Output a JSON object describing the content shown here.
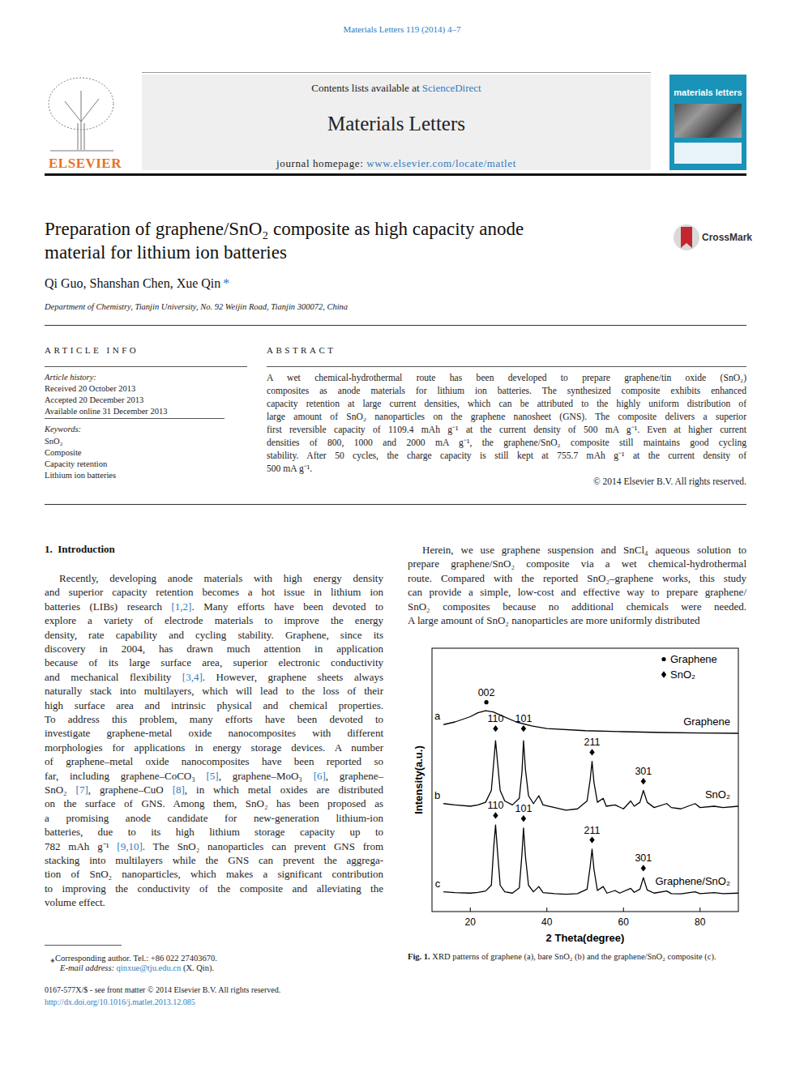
{
  "header": {
    "journal_ref": "Materials Letters 119 (2014) 4–7",
    "contents": "Contents lists available at ",
    "sciencedirect": "ScienceDirect",
    "journal": "Materials Letters",
    "homepage_label": "journal homepage: ",
    "homepage_url": "www.elsevier.com/locate/matlet",
    "publisher": "ELSEVIER",
    "cover_title": "materials letters",
    "crossmark": "CrossMark"
  },
  "title_lines": [
    "Preparation of graphene/SnO₂ composite as high capacity anode",
    "material for lithium ion batteries"
  ],
  "authors": "Qi Guo, Shanshan Chen, Xue Qin",
  "corresponding_mark": "*",
  "affiliation": "Department of Chemistry, Tianjin University, No. 92 Weijin Road, Tianjin 300072, China",
  "article_info": {
    "heading": "ARTICLE INFO",
    "history_label": "Article history:",
    "history": [
      "Received 20 October 2013",
      "Accepted 20 December 2013",
      "Available online 31 December 2013"
    ],
    "keywords_label": "Keywords:",
    "keywords": [
      "SnO₂",
      "Composite",
      "Capacity retention",
      "Lithium ion batteries"
    ]
  },
  "abstract": {
    "heading": "ABSTRACT",
    "lines": [
      "A wet chemical-hydrothermal route has been developed to prepare graphene/tin oxide (SnO₂)",
      "composites as anode materials for lithium ion batteries. The synthesized composite exhibits enhanced",
      "capacity retention at large current densities, which can be attributed to the highly uniform distribution of",
      "large amount of SnO₂ nanoparticles on the graphene nanosheet (GNS). The composite delivers a superior",
      "first reversible capacity of 1109.4 mAh g⁻¹ at the current density of 500 mA g⁻¹. Even at higher current",
      "densities of 800, 1000 and 2000 mA g⁻¹, the graphene/SnO₂ composite still maintains good cycling",
      "stability. After 50 cycles, the charge capacity is still kept at 755.7 mAh g⁻¹ at the current density of",
      "500 mA g⁻¹."
    ],
    "copyright": "© 2014 Elsevier B.V. All rights reserved."
  },
  "introduction": {
    "heading": "1.  Introduction",
    "left_lines": [
      "Recently, developing anode materials with high energy density",
      "and superior capacity retention becomes a hot issue in lithium ion",
      "batteries (LIBs) research [1,2]. Many efforts have been devoted to",
      "explore a variety of electrode materials to improve the energy",
      "density, rate capability and cycling stability. Graphene, since its",
      "discovery in 2004, has drawn much attention in application",
      "because of its large surface area, superior electronic conductivity",
      "and mechanical flexibility [3,4]. However, graphene sheets always",
      "naturally stack into multilayers, which will lead to the loss of their",
      "high surface area and intrinsic physical and chemical properties.",
      "To address this problem, many efforts have been devoted to",
      "investigate graphene-metal oxide nanocomposites with different",
      "morphologies for applications in energy storage devices. A number",
      "of graphene–metal oxide nanocomposites have been reported so",
      "far, including graphene–CoCO₃ [5], graphene–MoO₃ [6], graphene–",
      "SnO₂ [7], graphene–CuO [8], in which metal oxides are distributed",
      "on the surface of GNS. Among them, SnO₂ has been proposed as",
      "a promising anode candidate for new-generation lithium-ion",
      "batteries, due to its high lithium storage capacity up to",
      "782 mAh g⁻¹ [9,10]. The SnO₂ nanoparticles can prevent GNS from",
      "stacking into multilayers while the GNS can prevent the aggrega-",
      "tion of SnO₂ nanoparticles, which makes a significant contribution",
      "to improving the conductivity of the composite and alleviating the",
      "volume effect."
    ],
    "right_lines": [
      "Herein, we use graphene suspension and SnCl₄ aqueous solution to",
      "prepare graphene/SnO₂ composite via a wet chemical-hydrothermal",
      "route. Compared with the reported SnO₂–graphene works, this study",
      "can provide a simple, low-cost and effective way to prepare graphene/",
      "SnO₂ composites because no additional chemicals were needed.",
      "A large amount of SnO₂ nanoparticles are more uniformly distributed"
    ]
  },
  "figure": {
    "caption_label": "Fig. 1.",
    "caption": " XRD patterns of graphene (a), bare SnO₂ (b) and the graphene/SnO₂ composite (c)."
  },
  "chart_data": {
    "type": "line",
    "x_label": "2 Theta(degree)",
    "y_label": "Intensity(a.u.)",
    "xlim": [
      10,
      90
    ],
    "xticks": [
      20,
      40,
      60,
      80
    ],
    "ylim": [
      0,
      100
    ],
    "tick_labels": "x",
    "legend": "upper right",
    "legend_entries": [
      {
        "text": "Graphene",
        "marker": "dot"
      },
      {
        "text": "SnO₂",
        "marker": "diamond"
      }
    ],
    "series": [
      {
        "name": "Graphene",
        "label": "a",
        "color": "#000000",
        "x": [
          13,
          16,
          20,
          22,
          24,
          26,
          28,
          32,
          36,
          40,
          50,
          60,
          70,
          80,
          90
        ],
        "values": [
          71,
          72,
          74,
          75.5,
          76.3,
          75.8,
          74.5,
          72,
          70.5,
          69.5,
          68.7,
          68.3,
          68,
          67.8,
          67.7
        ]
      },
      {
        "name": "SnO₂",
        "label": "b",
        "color": "#000000",
        "x": [
          13,
          16,
          20,
          22,
          24,
          25.5,
          26.2,
          26.6,
          27.1,
          27.8,
          29,
          31,
          32.8,
          33.5,
          33.9,
          34.4,
          35.2,
          36.5,
          37.9,
          39,
          42,
          45,
          48,
          50.5,
          51.3,
          51.8,
          52.3,
          53.2,
          54.7,
          55.5,
          57.8,
          60,
          61.9,
          62.8,
          64.3,
          65.2,
          66.2,
          68,
          71.3,
          72.5,
          75,
          78.7,
          80,
          83.7,
          86,
          90
        ],
        "values": [
          41,
          40.5,
          40,
          40.5,
          41.5,
          46,
          58,
          64.9,
          57,
          46,
          42,
          40.5,
          43,
          53,
          64.9,
          54,
          44,
          41,
          44,
          40.5,
          39.5,
          38.5,
          39,
          42,
          50,
          57,
          49,
          41.5,
          43,
          40,
          40.5,
          39,
          42,
          40,
          41.5,
          46,
          41.5,
          39.5,
          41,
          39.5,
          39,
          41,
          39.5,
          40,
          39.5,
          40
        ]
      },
      {
        "name": "Graphene/SnO₂",
        "label": "c",
        "color": "#000000",
        "x": [
          13,
          16,
          20,
          22,
          24,
          25.5,
          26.1,
          26.6,
          27.1,
          27.8,
          29,
          31,
          32.8,
          33.5,
          33.9,
          34.4,
          35.2,
          36.5,
          37.9,
          39,
          42,
          45,
          48,
          50.5,
          51.3,
          51.8,
          52.3,
          53.2,
          54.7,
          55.7,
          57.8,
          59,
          61.9,
          62.8,
          64.3,
          65.2,
          66.2,
          68,
          71.3,
          72.5,
          75,
          78.7,
          80,
          83.7,
          86,
          90
        ],
        "values": [
          7.5,
          7.2,
          7,
          7.3,
          7.8,
          10,
          24,
          32.9,
          23,
          10,
          7.5,
          7,
          9,
          22,
          31.7,
          21,
          10,
          7.5,
          9.5,
          7.2,
          6.8,
          6.6,
          6.8,
          8.5,
          17,
          23.7,
          16,
          8,
          9.5,
          7,
          8,
          7,
          8.8,
          7.3,
          8.5,
          12.9,
          8.2,
          7,
          7.8,
          6.8,
          6.7,
          7.5,
          6.8,
          7.2,
          6.8,
          7
        ]
      }
    ],
    "annotations": [
      {
        "text": "002",
        "x": 24.2,
        "y": 79.5,
        "marker": "dot"
      },
      {
        "text": "110",
        "x": 26.6,
        "y": 69.5,
        "marker": "diamond"
      },
      {
        "text": "101",
        "x": 33.9,
        "y": 69.5,
        "marker": "diamond"
      },
      {
        "text": "211",
        "x": 51.8,
        "y": 60.5,
        "marker": "diamond"
      },
      {
        "text": "301",
        "x": 65.2,
        "y": 49.5,
        "marker": "diamond"
      },
      {
        "text": "110",
        "x": 26.6,
        "y": 36.5,
        "marker": "diamond"
      },
      {
        "text": "101",
        "x": 33.9,
        "y": 35.3,
        "marker": "diamond"
      },
      {
        "text": "211",
        "x": 51.8,
        "y": 27.2,
        "marker": "diamond"
      },
      {
        "text": "301",
        "x": 65.2,
        "y": 16.5,
        "marker": "diamond"
      }
    ]
  },
  "footnotes": {
    "corresponding": "⁎Corresponding author. Tel.: +86 022 27403670.",
    "email_label": "E-mail address: ",
    "email": "qinxue@tju.edu.cn",
    "email_suffix": " (X. Qin).",
    "front_matter": "0167-577X/$ - see front matter © 2014 Elsevier B.V. All rights reserved.",
    "doi": "http://dx.doi.org/10.1016/j.matlet.2013.12.085"
  }
}
